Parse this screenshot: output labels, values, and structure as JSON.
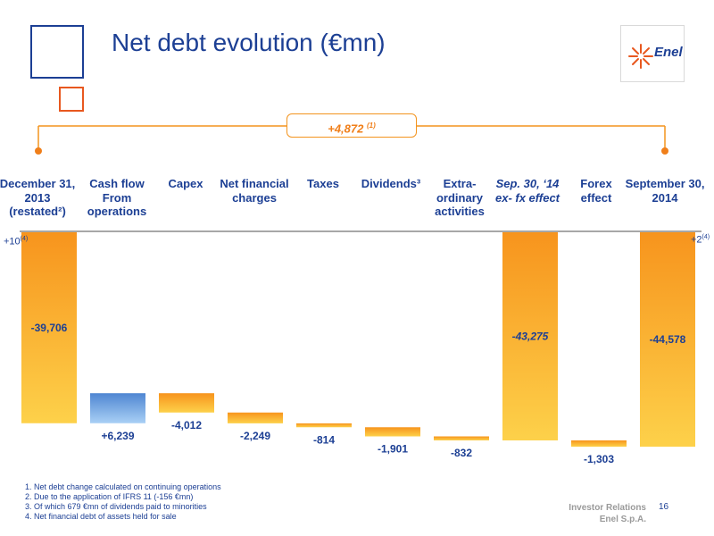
{
  "title": "Net debt evolution (€mn)",
  "logo": {
    "text": "Enel"
  },
  "callout": {
    "value": "+4,872",
    "note": "(1)"
  },
  "side_notes": {
    "left": {
      "value": "+10",
      "note": "(4)"
    },
    "right": {
      "value": "+2",
      "note": "(4)"
    }
  },
  "footnotes": [
    "1. Net debt change calculated on continuing operations",
    "2. Due to the application of IFRS 11 (-156 €mn)",
    "3. Of which 679 €mn of dividends paid to minorities",
    "4. Net financial debt of assets held for sale"
  ],
  "footer": {
    "line1": "Investor Relations",
    "line2": "Enel S.p.A.",
    "page": "16"
  },
  "colors": {
    "orange": "#f7941d",
    "blue": "#5b8fd6",
    "navy": "#1c3f94"
  },
  "chart_data": {
    "type": "bar",
    "subtype": "waterfall",
    "categories": [
      {
        "lines": [
          "December 31,",
          "2013",
          "(restated²)"
        ],
        "italic": false
      },
      {
        "lines": [
          "Cash flow",
          "From",
          "operations"
        ],
        "italic": false
      },
      {
        "lines": [
          "Capex"
        ],
        "italic": false
      },
      {
        "lines": [
          "Net financial",
          "charges"
        ],
        "italic": false
      },
      {
        "lines": [
          "Taxes"
        ],
        "italic": false
      },
      {
        "lines": [
          "Dividends³"
        ],
        "italic": false
      },
      {
        "lines": [
          "Extra-",
          "ordinary",
          "activities"
        ],
        "italic": false
      },
      {
        "lines": [
          "Sep. 30, ‘14",
          "ex- fx effect"
        ],
        "italic": true
      },
      {
        "lines": [
          "Forex",
          "effect"
        ],
        "italic": false
      },
      {
        "lines": [
          "September 30,",
          "2014"
        ],
        "italic": false
      }
    ],
    "bars": [
      {
        "kind": "total",
        "value": -39706,
        "label": "-39,706",
        "color": "orange"
      },
      {
        "kind": "delta",
        "value": 6239,
        "label": "+6,239",
        "color": "blue"
      },
      {
        "kind": "delta",
        "value": -4012,
        "label": "-4,012",
        "color": "orange"
      },
      {
        "kind": "delta",
        "value": -2249,
        "label": "-2,249",
        "color": "orange"
      },
      {
        "kind": "delta",
        "value": -814,
        "label": "-814",
        "color": "orange"
      },
      {
        "kind": "delta",
        "value": -1901,
        "label": "-1,901",
        "color": "orange"
      },
      {
        "kind": "delta",
        "value": -832,
        "label": "-832",
        "color": "orange"
      },
      {
        "kind": "total",
        "value": -43275,
        "label": "-43,275",
        "italic_label": true,
        "color": "orange"
      },
      {
        "kind": "delta",
        "value": -1303,
        "label": "-1,303",
        "color": "orange"
      },
      {
        "kind": "total",
        "value": -44578,
        "label": "-44,578",
        "color": "orange"
      }
    ],
    "grid": false,
    "legend": "none"
  }
}
